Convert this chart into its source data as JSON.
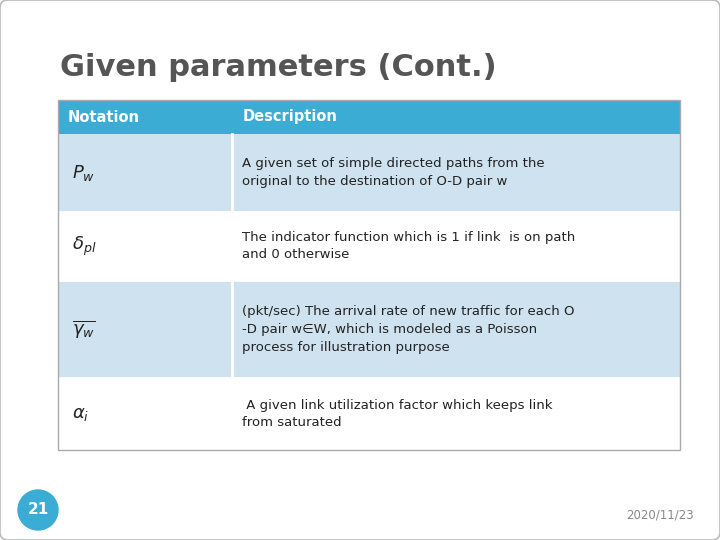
{
  "title": "Given parameters (Cont.)",
  "title_color": "#555555",
  "title_fontsize": 22,
  "header_bg": "#3badd4",
  "header_text_color": "#ffffff",
  "row_bg_light": "#cfe2f0",
  "row_bg_white": "#ffffff",
  "slide_bg": "#ffffff",
  "slide_border_color": "#bbbbbb",
  "page_number": "21",
  "page_number_bg": "#3badd4",
  "date": "2020/11/23",
  "columns": [
    "Notation",
    "Description"
  ],
  "rows": [
    {
      "notation": "$P_w$",
      "description": "A given set of simple directed paths from the\noriginal to the destination of O-D pair w",
      "bg": "#cfe2f0"
    },
    {
      "notation": "$\\delta_{pl}$",
      "description": "The indicator function which is 1 if link  is on path\nand 0 otherwise",
      "bg": "#ffffff"
    },
    {
      "notation": "$\\overline{\\gamma_w}$",
      "description": "(pkt/sec) The arrival rate of new traffic for each O\n-D pair w∈W, which is modeled as a Poisson\nprocess for illustration purpose",
      "bg": "#cfe2f0"
    },
    {
      "notation": "$\\alpha_i$",
      "description": " A given link utilization factor which keeps link\nfrom saturated",
      "bg": "#ffffff"
    }
  ]
}
